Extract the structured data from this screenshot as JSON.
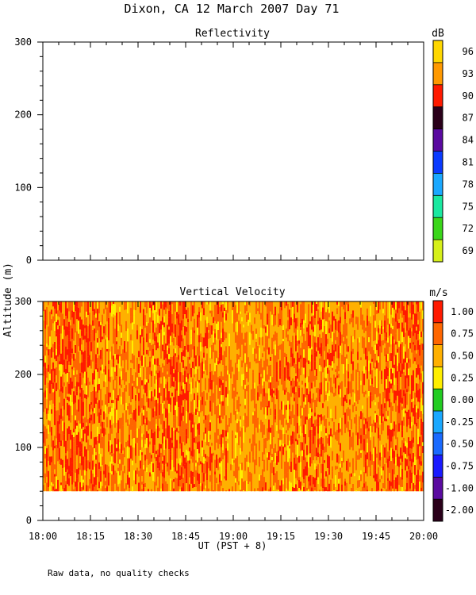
{
  "page": {
    "title": "Dixon, CA 12 March 2007  Day  71",
    "y_axis_label": "Altitude (m)",
    "x_axis_label": "UT  (PST + 8)",
    "footnote": "Raw data, no quality checks"
  },
  "chart_data": [
    {
      "type": "heatmap",
      "title": "Reflectivity",
      "ylabel": "Altitude (m)",
      "ylim": [
        0,
        300
      ],
      "y_ticks": [
        "0",
        "100",
        "200",
        "300"
      ],
      "x_ticks": [],
      "data_present": false,
      "colorbar": {
        "unit": "dB",
        "labels": [
          "96",
          "93",
          "90",
          "87",
          "84",
          "81",
          "78",
          "75",
          "72",
          "69"
        ],
        "colors": [
          "#ffd700",
          "#ff9900",
          "#ff1a00",
          "#2a001a",
          "#5a0aa0",
          "#0a3aff",
          "#1aa8ff",
          "#1ae8a0",
          "#3ad61a",
          "#d6f01a"
        ]
      }
    },
    {
      "type": "heatmap",
      "title": "Vertical Velocity",
      "ylabel": "Altitude (m)",
      "xlabel": "UT  (PST + 8)",
      "ylim": [
        0,
        300
      ],
      "data_altitude_range": [
        40,
        300
      ],
      "x_ticks": [
        "18:00",
        "18:15",
        "18:30",
        "18:45",
        "19:00",
        "19:15",
        "19:30",
        "19:45",
        "20:00"
      ],
      "y_ticks": [
        "0",
        "100",
        "200",
        "300"
      ],
      "colorbar": {
        "unit": "m/s",
        "labels": [
          "1.00",
          "0.75",
          "0.50",
          "0.25",
          "0.00",
          "-0.25",
          "-0.50",
          "-0.75",
          "-1.00",
          "-2.00"
        ],
        "colors": [
          "#ff1a00",
          "#ff6600",
          "#ffb000",
          "#ffee00",
          "#22cc22",
          "#1aa8ff",
          "#1a6aff",
          "#1a1aff",
          "#5a0aa0",
          "#2a001a"
        ]
      },
      "dominant_values_m_s": [
        0.5,
        0.75,
        1.0
      ]
    }
  ]
}
